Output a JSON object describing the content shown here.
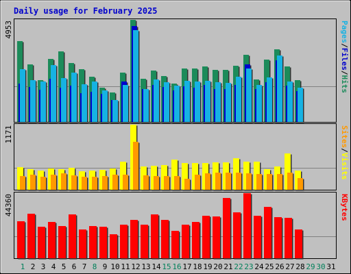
{
  "chart_data": {
    "type": "bar",
    "title": "Daily usage for February 2025",
    "days": [
      "1",
      "2",
      "3",
      "4",
      "5",
      "6",
      "7",
      "8",
      "9",
      "10",
      "11",
      "12",
      "13",
      "14",
      "15",
      "16",
      "17",
      "18",
      "19",
      "20",
      "21",
      "22",
      "23",
      "24",
      "25",
      "26",
      "27",
      "28",
      "29",
      "30",
      "31"
    ],
    "weekend_days": [
      "1",
      "8",
      "15",
      "16",
      "22",
      "23",
      "29",
      "30"
    ],
    "panels": [
      {
        "id": "hits",
        "max_label": "4953",
        "ymax": 4953,
        "series": [
          {
            "name": "Hits",
            "color": "#1b8b5a",
            "values": [
              3921,
              2785,
              2013,
              3065,
              3417,
              2862,
              2566,
              2179,
              1656,
              1424,
              2378,
              4953,
              2078,
              2503,
              2221,
              1866,
              2599,
              2585,
              2708,
              2516,
              2525,
              2733,
              3244,
              2068,
              3028,
              3520,
              2678,
              2016
            ]
          },
          {
            "name": "Files",
            "color": "#0000cc",
            "values": [
              1873,
              1699,
              1567,
              2084,
              1658,
              1768,
              1402,
              1452,
              1357,
              1050,
              1949,
              4660,
              1593,
              1780,
              1699,
              1526,
              1731,
              1665,
              1795,
              1600,
              1610,
              1780,
              2777,
              1600,
              1931,
              3000,
              1773,
              1495
            ]
          },
          {
            "name": "Pages",
            "color": "#16b2e3",
            "values": [
              2566,
              2041,
              1946,
              2743,
              2127,
              2382,
              1836,
              1967,
              1515,
              1079,
              1790,
              4450,
              1600,
              2052,
              1933,
              1749,
              2004,
              1950,
              1990,
              1930,
              1911,
              2179,
              2578,
              1800,
              2147,
              3218,
              1968,
              1664
            ]
          }
        ],
        "legend": [
          {
            "text": "Pages",
            "color": "#16b2e3"
          },
          {
            "text": "/",
            "color": "#000000"
          },
          {
            "text": "Files",
            "color": "#0000cc"
          },
          {
            "text": "/",
            "color": "#000000"
          },
          {
            "text": "Hits",
            "color": "#1b8b5a"
          }
        ]
      },
      {
        "id": "visits",
        "max_label": "1171",
        "ymax": 1171,
        "series": [
          {
            "name": "Visits",
            "color": "#ffff00",
            "values": [
              409,
              375,
              346,
              387,
              374,
              398,
              331,
              340,
              359,
              382,
              511,
              1171,
              422,
              433,
              446,
              545,
              482,
              484,
              478,
              491,
              496,
              570,
              508,
              509,
              366,
              417,
              649,
              349
            ]
          },
          {
            "name": "Sites",
            "color": "#ff9900",
            "values": [
              245,
              272,
              234,
              266,
              292,
              265,
              238,
              233,
              249,
              271,
              273,
              863,
              254,
              252,
              242,
              248,
              193,
              274,
              290,
              303,
              312,
              305,
              291,
              280,
              278,
              287,
              303,
              212
            ]
          }
        ],
        "legend": [
          {
            "text": "Sites",
            "color": "#ff9900"
          },
          {
            "text": "/",
            "color": "#000000"
          },
          {
            "text": "Visits",
            "color": "#ffff00"
          }
        ]
      },
      {
        "id": "kbytes",
        "max_label": "44360",
        "ymax": 44360,
        "series": [
          {
            "name": "KBytes",
            "color": "#ff0000",
            "values": [
              25187,
              30230,
              21591,
              24800,
              21768,
              30000,
              19723,
              21720,
              21371,
              16417,
              22878,
              26210,
              22878,
              30000,
              26210,
              18890,
              22878,
              24898,
              28762,
              28400,
              41239,
              31136,
              44360,
              28762,
              35000,
              28040,
              27433,
              19723
            ]
          }
        ],
        "legend": [
          {
            "text": "KBytes",
            "color": "#ff0000"
          }
        ]
      }
    ]
  }
}
